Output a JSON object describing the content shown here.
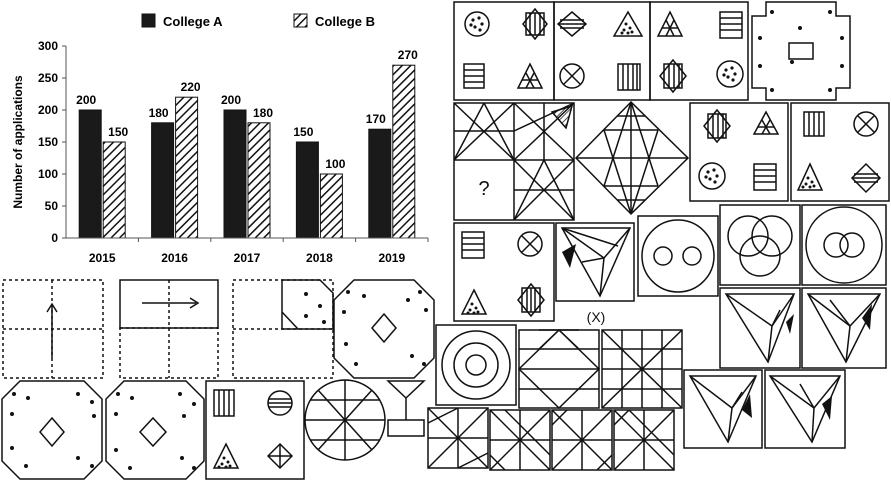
{
  "chart_data": {
    "type": "bar",
    "categories": [
      "2015",
      "2016",
      "2017",
      "2018",
      "2019"
    ],
    "series": [
      {
        "name": "College A",
        "values": [
          200,
          180,
          200,
          150,
          170
        ],
        "fill": "solid",
        "color": "#1a1a1a"
      },
      {
        "name": "College B",
        "values": [
          150,
          220,
          180,
          100,
          270
        ],
        "fill": "diagonal-hatch",
        "color": "#1a1a1a"
      }
    ],
    "xlabel": "",
    "ylabel": "Number of applications",
    "ylim": [
      0,
      300
    ],
    "yticks": [
      "0",
      "50",
      "100",
      "150",
      "200",
      "250",
      "300"
    ],
    "legend_position": "top",
    "grid": false
  },
  "figures": {
    "question_mark": "?",
    "x_label": "(X)"
  }
}
